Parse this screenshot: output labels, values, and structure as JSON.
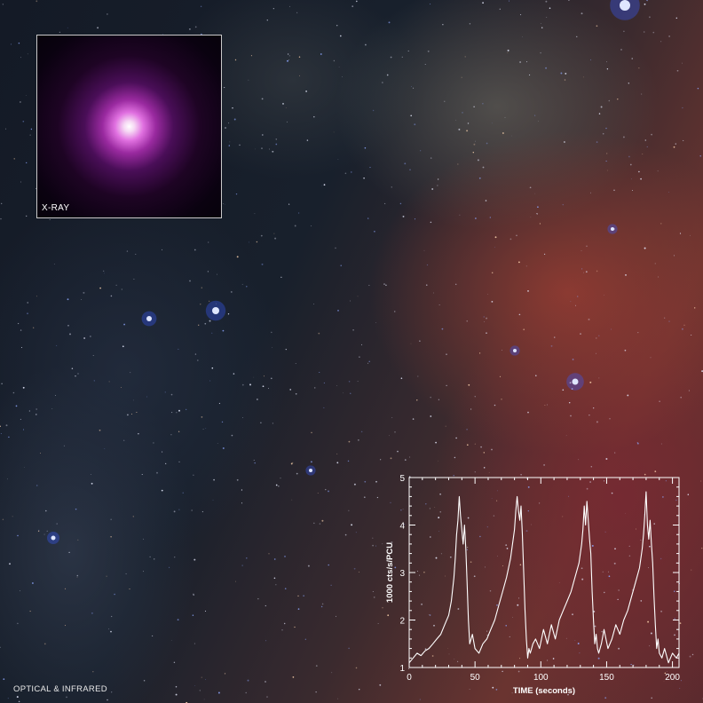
{
  "xray_inset": {
    "label": "X-RAY"
  },
  "optical_caption": "OPTICAL & INFRARED",
  "chart_data": {
    "type": "line",
    "xlabel": "TIME (seconds)",
    "ylabel": "1000 cts/s/PCU",
    "xlim": [
      0,
      205
    ],
    "ylim": [
      1,
      5
    ],
    "x_ticks": [
      0,
      50,
      100,
      150,
      200
    ],
    "y_ticks": [
      1,
      2,
      3,
      4,
      5
    ],
    "grid": false,
    "series": [
      {
        "color": "#ffffff",
        "x": [
          0,
          3,
          6,
          9,
          12,
          15,
          18,
          21,
          24,
          27,
          30,
          32,
          34,
          35,
          36,
          37,
          38,
          39,
          40,
          41,
          42,
          43,
          44,
          45,
          46,
          48,
          50,
          53,
          56,
          59,
          62,
          65,
          68,
          71,
          74,
          77,
          80,
          81,
          82,
          83,
          84,
          85,
          86,
          87,
          88,
          89,
          90,
          91,
          92,
          94,
          96,
          99,
          102,
          105,
          108,
          111,
          114,
          117,
          120,
          123,
          126,
          129,
          131,
          132,
          133,
          134,
          135,
          136,
          137,
          138,
          139,
          140,
          141,
          142,
          143,
          144,
          146,
          148,
          151,
          154,
          157,
          160,
          163,
          166,
          169,
          172,
          175,
          177,
          178,
          179,
          180,
          181,
          182,
          183,
          184,
          185,
          186,
          187,
          188,
          189,
          190,
          192,
          194,
          197,
          200,
          203,
          205
        ],
        "y": [
          1.1,
          1.2,
          1.3,
          1.25,
          1.35,
          1.4,
          1.5,
          1.6,
          1.7,
          1.9,
          2.1,
          2.4,
          2.9,
          3.3,
          3.8,
          4.1,
          4.6,
          4.2,
          3.9,
          3.6,
          4.0,
          3.5,
          2.8,
          2.0,
          1.5,
          1.7,
          1.4,
          1.3,
          1.5,
          1.6,
          1.8,
          2.0,
          2.3,
          2.6,
          2.9,
          3.3,
          3.9,
          4.3,
          4.6,
          4.3,
          4.1,
          4.4,
          3.8,
          3.0,
          2.2,
          1.6,
          1.2,
          1.4,
          1.3,
          1.5,
          1.6,
          1.4,
          1.8,
          1.5,
          1.9,
          1.6,
          2.0,
          2.2,
          2.4,
          2.6,
          2.9,
          3.2,
          3.6,
          3.9,
          4.4,
          4.0,
          4.5,
          4.1,
          3.7,
          3.4,
          2.6,
          2.0,
          1.5,
          1.7,
          1.4,
          1.3,
          1.5,
          1.8,
          1.4,
          1.6,
          1.9,
          1.7,
          2.0,
          2.2,
          2.5,
          2.8,
          3.1,
          3.5,
          3.8,
          4.2,
          4.7,
          4.0,
          3.7,
          4.1,
          3.6,
          3.2,
          2.5,
          1.9,
          1.4,
          1.6,
          1.3,
          1.2,
          1.4,
          1.1,
          1.3,
          1.2,
          1.3
        ]
      }
    ]
  }
}
